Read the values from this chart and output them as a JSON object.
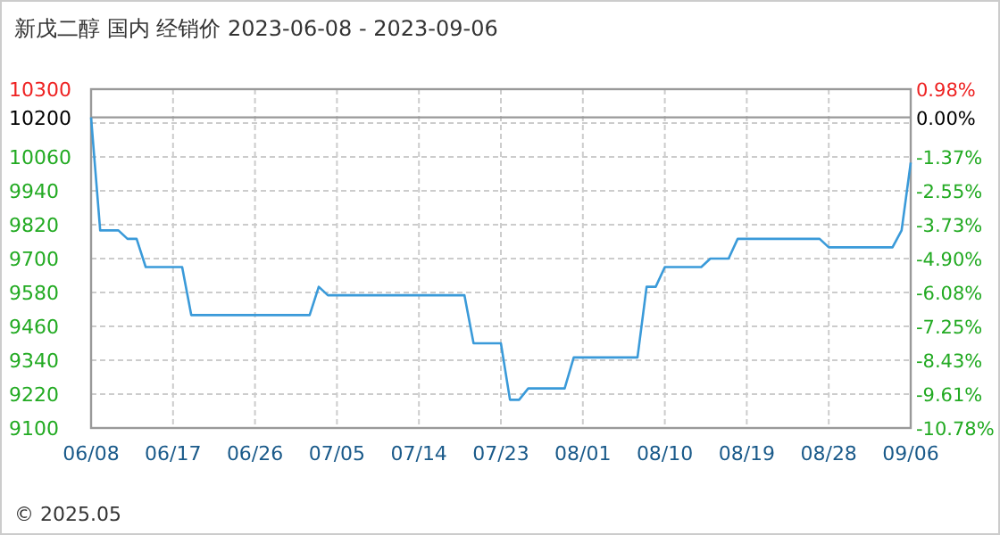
{
  "chart_data": {
    "type": "line",
    "title": "新戊二醇 国内 经销价 2023-06-08 - 2023-09-06",
    "x": [
      "2023-06-08",
      "2023-06-09",
      "2023-06-11",
      "2023-06-12",
      "2023-06-13",
      "2023-06-14",
      "2023-06-18",
      "2023-06-19",
      "2023-07-02",
      "2023-07-03",
      "2023-07-04",
      "2023-07-19",
      "2023-07-20",
      "2023-07-23",
      "2023-07-24",
      "2023-07-25",
      "2023-07-26",
      "2023-07-30",
      "2023-07-31",
      "2023-08-07",
      "2023-08-08",
      "2023-08-09",
      "2023-08-10",
      "2023-08-14",
      "2023-08-15",
      "2023-08-17",
      "2023-08-18",
      "2023-08-27",
      "2023-08-28",
      "2023-09-04",
      "2023-09-05",
      "2023-09-06"
    ],
    "series": [
      {
        "color": "#3a9ad9",
        "values": [
          10200,
          9800,
          9800,
          9770,
          9770,
          9670,
          9670,
          9500,
          9500,
          9600,
          9570,
          9570,
          9400,
          9400,
          9200,
          9200,
          9240,
          9240,
          9350,
          9350,
          9600,
          9600,
          9670,
          9670,
          9700,
          9700,
          9770,
          9770,
          9740,
          9740,
          9800,
          10040
        ]
      }
    ],
    "xlim": [
      "2023-06-08",
      "2023-09-06"
    ],
    "xticks": [
      {
        "value": "2023-06-08",
        "label": "06/08"
      },
      {
        "value": "2023-06-17",
        "label": "06/17"
      },
      {
        "value": "2023-06-26",
        "label": "06/26"
      },
      {
        "value": "2023-07-05",
        "label": "07/05"
      },
      {
        "value": "2023-07-14",
        "label": "07/14"
      },
      {
        "value": "2023-07-23",
        "label": "07/23"
      },
      {
        "value": "2023-08-01",
        "label": "08/01"
      },
      {
        "value": "2023-08-10",
        "label": "08/10"
      },
      {
        "value": "2023-08-19",
        "label": "08/19"
      },
      {
        "value": "2023-08-28",
        "label": "08/28"
      },
      {
        "value": "2023-09-06",
        "label": "09/06"
      }
    ],
    "ylim": [
      9100,
      10300
    ],
    "yticks": [
      9100,
      9220,
      9340,
      9460,
      9580,
      9700,
      9820,
      9940,
      10060,
      {
        "value": 10180,
        "label": null
      },
      10200,
      10300
    ],
    "y2lim": [
      -10.78,
      0.98
    ],
    "y2ticks": [
      {
        "value": -10.78,
        "label": "-10.78%"
      },
      {
        "value": -9.61,
        "label": "-9.61%"
      },
      {
        "value": -8.43,
        "label": "-8.43%"
      },
      {
        "value": -7.25,
        "label": "-7.25%"
      },
      {
        "value": -6.08,
        "label": "-6.08%"
      },
      {
        "value": -4.9,
        "label": "-4.90%"
      },
      {
        "value": -3.73,
        "label": "-3.73%"
      },
      {
        "value": -2.55,
        "label": "-2.55%"
      },
      {
        "value": -1.37,
        "label": "-1.37%"
      },
      {
        "value": 0,
        "label": "0.00%"
      },
      {
        "value": 0.98,
        "label": "0.98%"
      }
    ],
    "ref_lines": [
      {
        "axis": "y",
        "value": 10200,
        "color": "#999999"
      }
    ],
    "grid": true,
    "marker": "none",
    "line_style": "solid",
    "annotations": [
      "© 2025.05"
    ]
  }
}
